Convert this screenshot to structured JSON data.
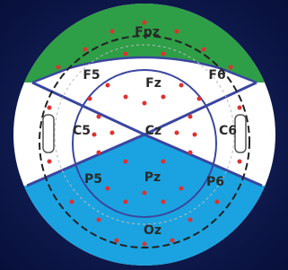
{
  "labels": [
    "Fpz",
    "F5",
    "Fz",
    "F6",
    "C5",
    "Cz",
    "C6",
    "P5",
    "Pz",
    "P6",
    "Oz"
  ]
}
